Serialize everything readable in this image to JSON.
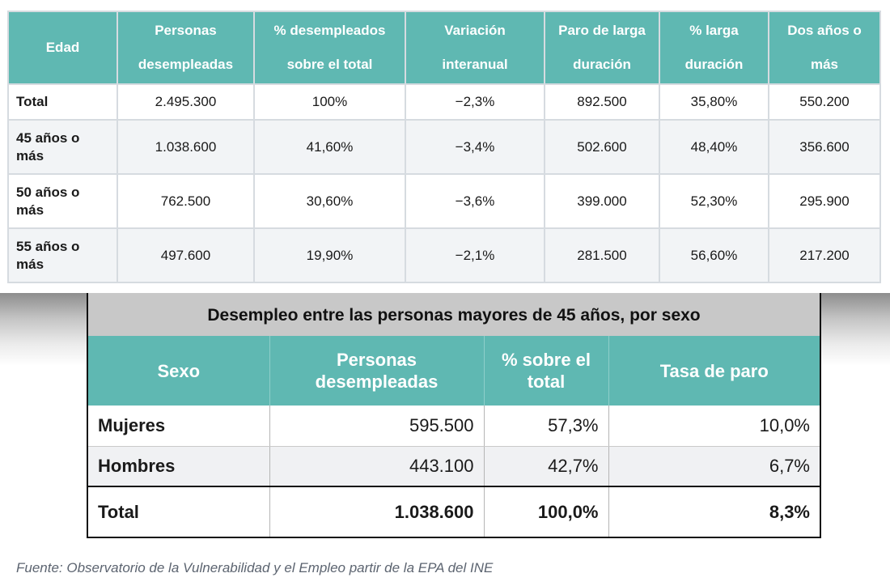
{
  "table1": {
    "headers": [
      "Edad",
      "Personas desempleadas",
      "% desempleados sobre el total",
      "Variación interanual",
      "Paro de larga duración",
      "% larga duración",
      "Dos años o más"
    ],
    "rows": [
      [
        "Total",
        "2.495.300",
        "100%",
        "−2,3%",
        "892.500",
        "35,80%",
        "550.200"
      ],
      [
        "45 años o más",
        "1.038.600",
        "41,60%",
        "−3,4%",
        "502.600",
        "48,40%",
        "356.600"
      ],
      [
        "50 años o más",
        "762.500",
        "30,60%",
        "−3,6%",
        "399.000",
        "52,30%",
        "295.900"
      ],
      [
        "55 años o más",
        "497.600",
        "19,90%",
        "−2,1%",
        "281.500",
        "56,60%",
        "217.200"
      ]
    ]
  },
  "table2": {
    "caption": "Desempleo entre las personas mayores de 45 años, por sexo",
    "headers": [
      "Sexo",
      "Personas desempleadas",
      "% sobre el total",
      "Tasa de paro"
    ],
    "rows": [
      [
        "Mujeres",
        "595.500",
        "57,3%",
        "10,0%"
      ],
      [
        "Hombres",
        "443.100",
        "42,7%",
        "6,7%"
      ]
    ],
    "total": [
      "Total",
      "1.038.600",
      "100,0%",
      "8,3%"
    ]
  },
  "source": "Fuente: Observatorio de la Vulnerabilidad y el Empleo partir de la EPA del INE",
  "colors": {
    "header_teal": "#5fb8b2",
    "caption_gray": "#c8c8c8",
    "border_light": "#d6dbe0"
  }
}
